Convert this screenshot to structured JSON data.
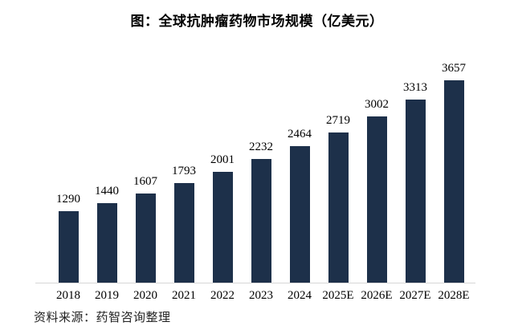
{
  "chart_data": {
    "type": "bar",
    "title": "图：全球抗肿瘤药物市场规模（亿美元）",
    "categories": [
      "2018",
      "2019",
      "2020",
      "2021",
      "2022",
      "2023",
      "2024",
      "2025E",
      "2026E",
      "2027E",
      "2028E"
    ],
    "values": [
      1290,
      1440,
      1607,
      1793,
      2001,
      2232,
      2464,
      2719,
      3002,
      3313,
      3657
    ],
    "value_labels_shown": true,
    "bar_color": "#1d304a",
    "value_label_color": "#000000",
    "axis_line_color": "#d6d6d6",
    "xlabel": "",
    "ylabel": "",
    "ylim": [
      0,
      3657
    ],
    "grid": false,
    "legend": false,
    "y_axis_shown": false
  },
  "source_note": "资料来源：药智咨询整理"
}
